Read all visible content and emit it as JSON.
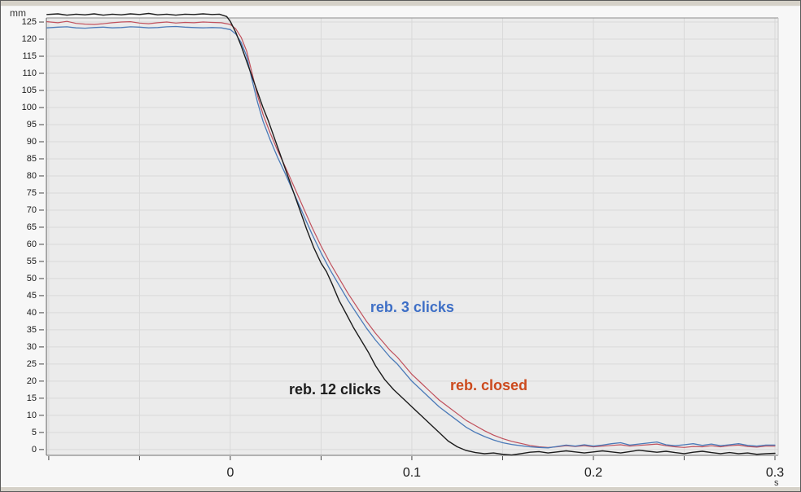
{
  "window": {
    "kind": "measurement-plot-window"
  },
  "colors": {
    "plot_bg": "#ebebeb",
    "outer_bg": "#f7f7f7",
    "grid": "#d9d9d9",
    "frame_top": "#8c8c8c",
    "frame_left": "#5f5f5f",
    "frame_bottom": "#707070",
    "frame_right": "#c8c8c8",
    "tick": "#444444",
    "tick_label": "#1a1a1a",
    "window_strip": "#d5d1c8"
  },
  "chart_data": {
    "type": "line",
    "title": "",
    "xlabel": "",
    "ylabel": "",
    "x_unit": "s",
    "y_unit": "mm",
    "xlim": [
      -0.1013,
      0.3018
    ],
    "ylim": [
      -1.7,
      126.2
    ],
    "grid": true,
    "legend_position": "inline-annotations",
    "x_ticks": [
      -0.1,
      -0.05,
      0,
      0.05,
      0.1,
      0.15,
      0.2,
      0.25,
      0.3
    ],
    "x_tick_labels": [
      "",
      "",
      "0",
      "",
      "0.1",
      "",
      "0.2",
      "",
      "0.3"
    ],
    "y_ticks": [
      0,
      5,
      10,
      15,
      20,
      25,
      30,
      35,
      40,
      45,
      50,
      55,
      60,
      65,
      70,
      75,
      80,
      85,
      90,
      95,
      100,
      105,
      110,
      115,
      120,
      125
    ],
    "series": [
      {
        "name": "reb. closed",
        "color": "#c0505c",
        "width": 1.2,
        "points": [
          [
            -0.101,
            125.1
          ],
          [
            -0.095,
            124.8
          ],
          [
            -0.09,
            125.2
          ],
          [
            -0.085,
            124.6
          ],
          [
            -0.08,
            124.4
          ],
          [
            -0.075,
            124.3
          ],
          [
            -0.07,
            124.5
          ],
          [
            -0.065,
            124.8
          ],
          [
            -0.06,
            125.0
          ],
          [
            -0.055,
            125.1
          ],
          [
            -0.05,
            124.7
          ],
          [
            -0.045,
            124.5
          ],
          [
            -0.04,
            124.8
          ],
          [
            -0.035,
            125.0
          ],
          [
            -0.03,
            124.7
          ],
          [
            -0.025,
            124.9
          ],
          [
            -0.02,
            124.8
          ],
          [
            -0.015,
            125.0
          ],
          [
            -0.01,
            124.9
          ],
          [
            -0.005,
            124.8
          ],
          [
            0.0,
            124.3
          ],
          [
            0.003,
            123.0
          ],
          [
            0.006,
            120.5
          ],
          [
            0.009,
            116.5
          ],
          [
            0.012,
            110.0
          ],
          [
            0.015,
            103.5
          ],
          [
            0.018,
            98.0
          ],
          [
            0.022,
            92.5
          ],
          [
            0.026,
            87.5
          ],
          [
            0.03,
            83.0
          ],
          [
            0.035,
            77.0
          ],
          [
            0.04,
            71.0
          ],
          [
            0.045,
            65.0
          ],
          [
            0.05,
            59.5
          ],
          [
            0.055,
            54.5
          ],
          [
            0.06,
            50.0
          ],
          [
            0.065,
            45.5
          ],
          [
            0.07,
            41.5
          ],
          [
            0.075,
            37.5
          ],
          [
            0.08,
            34.0
          ],
          [
            0.084,
            31.5
          ],
          [
            0.088,
            29.0
          ],
          [
            0.092,
            27.0
          ],
          [
            0.096,
            24.5
          ],
          [
            0.1,
            22.0
          ],
          [
            0.105,
            19.5
          ],
          [
            0.11,
            17.0
          ],
          [
            0.115,
            14.5
          ],
          [
            0.12,
            12.5
          ],
          [
            0.125,
            10.5
          ],
          [
            0.13,
            8.5
          ],
          [
            0.135,
            7.0
          ],
          [
            0.14,
            5.5
          ],
          [
            0.145,
            4.2
          ],
          [
            0.15,
            3.2
          ],
          [
            0.155,
            2.4
          ],
          [
            0.16,
            1.8
          ],
          [
            0.165,
            1.2
          ],
          [
            0.17,
            0.8
          ],
          [
            0.175,
            0.6
          ],
          [
            0.18,
            0.8
          ],
          [
            0.185,
            1.1
          ],
          [
            0.19,
            0.9
          ],
          [
            0.195,
            1.1
          ],
          [
            0.2,
            0.8
          ],
          [
            0.205,
            1.0
          ],
          [
            0.21,
            1.2
          ],
          [
            0.215,
            1.4
          ],
          [
            0.22,
            1.0
          ],
          [
            0.225,
            1.2
          ],
          [
            0.23,
            1.4
          ],
          [
            0.235,
            1.6
          ],
          [
            0.24,
            1.1
          ],
          [
            0.245,
            0.8
          ],
          [
            0.25,
            0.6
          ],
          [
            0.255,
            0.9
          ],
          [
            0.26,
            0.8
          ],
          [
            0.265,
            1.1
          ],
          [
            0.27,
            0.8
          ],
          [
            0.275,
            1.1
          ],
          [
            0.28,
            1.3
          ],
          [
            0.285,
            0.9
          ],
          [
            0.29,
            0.7
          ],
          [
            0.295,
            1.0
          ],
          [
            0.3,
            1.0
          ]
        ]
      },
      {
        "name": "reb. 3 clicks",
        "color": "#4b7ab8",
        "width": 1.3,
        "points": [
          [
            -0.101,
            123.3
          ],
          [
            -0.095,
            123.5
          ],
          [
            -0.09,
            123.6
          ],
          [
            -0.085,
            123.3
          ],
          [
            -0.08,
            123.2
          ],
          [
            -0.075,
            123.4
          ],
          [
            -0.07,
            123.5
          ],
          [
            -0.065,
            123.3
          ],
          [
            -0.06,
            123.4
          ],
          [
            -0.055,
            123.6
          ],
          [
            -0.05,
            123.5
          ],
          [
            -0.045,
            123.3
          ],
          [
            -0.04,
            123.4
          ],
          [
            -0.035,
            123.6
          ],
          [
            -0.03,
            123.7
          ],
          [
            -0.025,
            123.5
          ],
          [
            -0.02,
            123.4
          ],
          [
            -0.015,
            123.3
          ],
          [
            -0.01,
            123.4
          ],
          [
            -0.005,
            123.3
          ],
          [
            0.0,
            122.8
          ],
          [
            0.003,
            121.5
          ],
          [
            0.006,
            119.0
          ],
          [
            0.009,
            115.0
          ],
          [
            0.012,
            108.0
          ],
          [
            0.015,
            101.5
          ],
          [
            0.018,
            96.0
          ],
          [
            0.022,
            90.5
          ],
          [
            0.026,
            85.5
          ],
          [
            0.03,
            81.0
          ],
          [
            0.035,
            75.0
          ],
          [
            0.04,
            69.0
          ],
          [
            0.045,
            63.0
          ],
          [
            0.05,
            57.5
          ],
          [
            0.055,
            52.5
          ],
          [
            0.06,
            48.0
          ],
          [
            0.065,
            43.5
          ],
          [
            0.07,
            39.5
          ],
          [
            0.075,
            35.5
          ],
          [
            0.08,
            32.0
          ],
          [
            0.084,
            29.5
          ],
          [
            0.088,
            27.0
          ],
          [
            0.092,
            25.0
          ],
          [
            0.096,
            22.5
          ],
          [
            0.1,
            20.0
          ],
          [
            0.105,
            17.5
          ],
          [
            0.11,
            15.0
          ],
          [
            0.115,
            12.5
          ],
          [
            0.12,
            10.5
          ],
          [
            0.125,
            8.5
          ],
          [
            0.13,
            6.5
          ],
          [
            0.135,
            5.0
          ],
          [
            0.14,
            3.8
          ],
          [
            0.145,
            2.8
          ],
          [
            0.15,
            2.0
          ],
          [
            0.155,
            1.5
          ],
          [
            0.16,
            1.1
          ],
          [
            0.165,
            0.8
          ],
          [
            0.17,
            0.6
          ],
          [
            0.175,
            0.5
          ],
          [
            0.18,
            0.9
          ],
          [
            0.185,
            1.3
          ],
          [
            0.19,
            1.0
          ],
          [
            0.195,
            1.4
          ],
          [
            0.2,
            1.0
          ],
          [
            0.205,
            1.3
          ],
          [
            0.21,
            1.7
          ],
          [
            0.215,
            2.0
          ],
          [
            0.22,
            1.3
          ],
          [
            0.225,
            1.6
          ],
          [
            0.23,
            1.9
          ],
          [
            0.235,
            2.2
          ],
          [
            0.24,
            1.4
          ],
          [
            0.245,
            1.1
          ],
          [
            0.25,
            1.4
          ],
          [
            0.255,
            1.7
          ],
          [
            0.26,
            1.2
          ],
          [
            0.265,
            1.6
          ],
          [
            0.27,
            1.1
          ],
          [
            0.275,
            1.4
          ],
          [
            0.28,
            1.7
          ],
          [
            0.285,
            1.2
          ],
          [
            0.29,
            1.0
          ],
          [
            0.295,
            1.3
          ],
          [
            0.3,
            1.3
          ]
        ]
      },
      {
        "name": "reb. 12 clicks",
        "color": "#1c1c1c",
        "width": 1.4,
        "points": [
          [
            -0.101,
            127.2
          ],
          [
            -0.095,
            127.4
          ],
          [
            -0.09,
            127.0
          ],
          [
            -0.085,
            127.3
          ],
          [
            -0.08,
            127.1
          ],
          [
            -0.075,
            127.4
          ],
          [
            -0.07,
            127.0
          ],
          [
            -0.065,
            127.3
          ],
          [
            -0.06,
            127.1
          ],
          [
            -0.055,
            127.4
          ],
          [
            -0.05,
            127.2
          ],
          [
            -0.045,
            127.5
          ],
          [
            -0.04,
            127.1
          ],
          [
            -0.035,
            127.3
          ],
          [
            -0.03,
            127.0
          ],
          [
            -0.025,
            127.3
          ],
          [
            -0.02,
            127.2
          ],
          [
            -0.015,
            127.4
          ],
          [
            -0.01,
            127.2
          ],
          [
            -0.006,
            127.3
          ],
          [
            -0.002,
            126.6
          ],
          [
            0.0,
            125.2
          ],
          [
            0.003,
            122.0
          ],
          [
            0.006,
            118.0
          ],
          [
            0.009,
            113.5
          ],
          [
            0.012,
            109.0
          ],
          [
            0.015,
            104.5
          ],
          [
            0.018,
            100.0
          ],
          [
            0.021,
            96.0
          ],
          [
            0.025,
            90.0
          ],
          [
            0.028,
            85.5
          ],
          [
            0.031,
            81.0
          ],
          [
            0.034,
            76.5
          ],
          [
            0.038,
            70.5
          ],
          [
            0.042,
            64.5
          ],
          [
            0.046,
            59.0
          ],
          [
            0.05,
            54.5
          ],
          [
            0.053,
            52.0
          ],
          [
            0.056,
            48.5
          ],
          [
            0.06,
            43.5
          ],
          [
            0.064,
            39.5
          ],
          [
            0.068,
            35.5
          ],
          [
            0.072,
            32.0
          ],
          [
            0.076,
            28.5
          ],
          [
            0.08,
            24.5
          ],
          [
            0.085,
            20.5
          ],
          [
            0.09,
            17.5
          ],
          [
            0.095,
            15.0
          ],
          [
            0.1,
            12.5
          ],
          [
            0.105,
            10.0
          ],
          [
            0.11,
            7.5
          ],
          [
            0.115,
            5.0
          ],
          [
            0.12,
            2.5
          ],
          [
            0.125,
            0.8
          ],
          [
            0.13,
            -0.3
          ],
          [
            0.135,
            -0.9
          ],
          [
            0.14,
            -1.2
          ],
          [
            0.145,
            -1.0
          ],
          [
            0.15,
            -1.4
          ],
          [
            0.155,
            -1.6
          ],
          [
            0.16,
            -1.2
          ],
          [
            0.165,
            -0.8
          ],
          [
            0.17,
            -0.6
          ],
          [
            0.175,
            -1.0
          ],
          [
            0.18,
            -0.7
          ],
          [
            0.185,
            -0.4
          ],
          [
            0.19,
            -0.7
          ],
          [
            0.195,
            -1.0
          ],
          [
            0.2,
            -0.7
          ],
          [
            0.205,
            -0.4
          ],
          [
            0.21,
            -0.7
          ],
          [
            0.215,
            -1.0
          ],
          [
            0.22,
            -0.6
          ],
          [
            0.225,
            -0.2
          ],
          [
            0.23,
            -0.5
          ],
          [
            0.235,
            -0.8
          ],
          [
            0.24,
            -0.5
          ],
          [
            0.245,
            -0.9
          ],
          [
            0.25,
            -1.2
          ],
          [
            0.255,
            -0.8
          ],
          [
            0.26,
            -0.5
          ],
          [
            0.265,
            -0.9
          ],
          [
            0.27,
            -1.2
          ],
          [
            0.275,
            -0.9
          ],
          [
            0.28,
            -1.2
          ],
          [
            0.285,
            -1.0
          ],
          [
            0.29,
            -1.4
          ],
          [
            0.295,
            -1.2
          ],
          [
            0.3,
            -1.1
          ]
        ]
      }
    ],
    "annotations": [
      {
        "text": "reb. 3 clicks",
        "color": "#3e6fc6",
        "t": 0.0771,
        "mm": 41.7
      },
      {
        "text": "reb. 12 clicks",
        "color": "#1c1c1c",
        "t": 0.0323,
        "mm": 17.6
      },
      {
        "text": "reb. closed",
        "color": "#cc4a1d",
        "t": 0.1211,
        "mm": 18.8
      }
    ]
  }
}
